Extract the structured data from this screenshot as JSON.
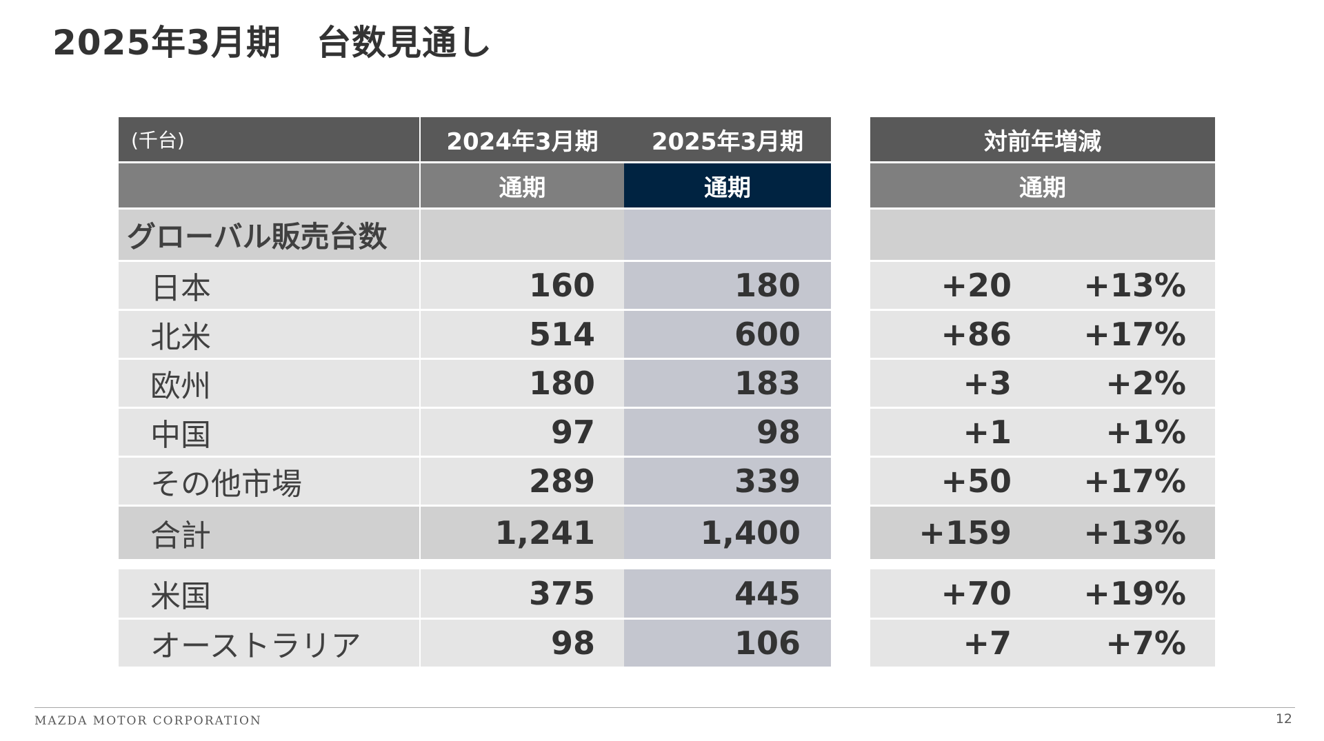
{
  "page": {
    "title": "2025年3月期　台数見通し",
    "footer_company": "MAZDA MOTOR CORPORATION",
    "page_number": "12"
  },
  "table": {
    "unit": "(千台)",
    "col_fy2024": "2024年3月期",
    "col_fy2025": "2025年3月期",
    "col_yoy": "対前年増減",
    "sub_full_year": "通期",
    "section_label": "グローバル販売台数",
    "rows": [
      {
        "label": "日本",
        "fy2024": "160",
        "fy2025": "180",
        "diff": "+20",
        "pct": "+13%"
      },
      {
        "label": "北米",
        "fy2024": "514",
        "fy2025": "600",
        "diff": "+86",
        "pct": "+17%"
      },
      {
        "label": "欧州",
        "fy2024": "180",
        "fy2025": "183",
        "diff": "+3",
        "pct": "+2%"
      },
      {
        "label": "中国",
        "fy2024": "97",
        "fy2025": "98",
        "diff": "+1",
        "pct": "+1%"
      },
      {
        "label": "その他市場",
        "fy2024": "289",
        "fy2025": "339",
        "diff": "+50",
        "pct": "+17%"
      },
      {
        "label": "合計",
        "fy2024": "1,241",
        "fy2025": "1,400",
        "diff": "+159",
        "pct": "+13%"
      },
      {
        "label": "米国",
        "fy2024": "375",
        "fy2025": "445",
        "diff": "+70",
        "pct": "+19%"
      },
      {
        "label": "オーストラリア",
        "fy2024": "98",
        "fy2025": "106",
        "diff": "+7",
        "pct": "+7%"
      }
    ]
  },
  "colors": {
    "header_dark": "#595959",
    "header_mid": "#7f7f7f",
    "header_navy": "#002341",
    "row_bg": "#e5e5e5",
    "row_highlight": "#d0d0d0",
    "current_year_bg": "#c4c6cf"
  }
}
